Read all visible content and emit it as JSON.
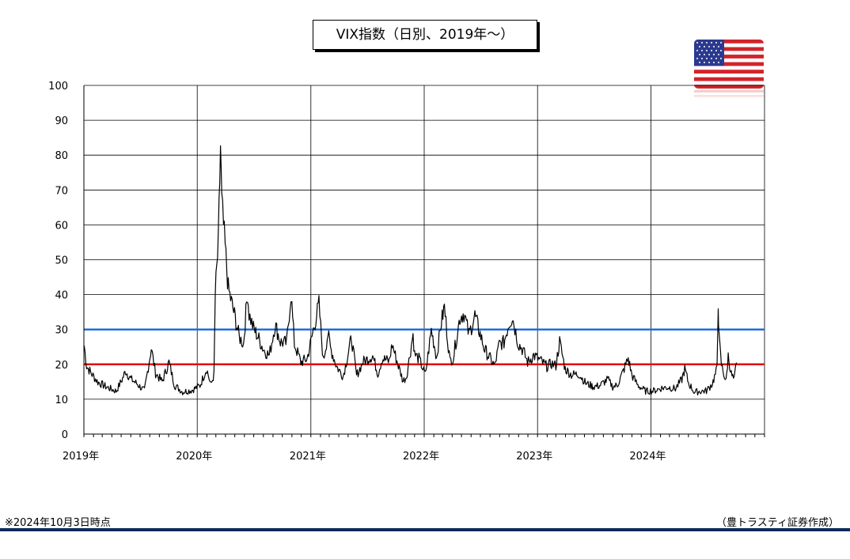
{
  "footnote": "※2024年10月3日時点",
  "credit": "（豊トラスティ証券作成）",
  "flag_icon": "us-flag-icon",
  "chart_data": {
    "type": "line",
    "title": "VIX指数（日別、2019年～）",
    "ylim": [
      0,
      100
    ],
    "yticks": [
      0,
      10,
      20,
      30,
      40,
      50,
      60,
      70,
      80,
      90,
      100
    ],
    "xlim": [
      "2019-01-01",
      "2025-01-01"
    ],
    "xticks": [
      {
        "label": "2019年",
        "date": "2019-01-01"
      },
      {
        "label": "2020年",
        "date": "2020-01-01"
      },
      {
        "label": "2021年",
        "date": "2021-01-01"
      },
      {
        "label": "2022年",
        "date": "2022-01-01"
      },
      {
        "label": "2023年",
        "date": "2023-01-01"
      },
      {
        "label": "2024年",
        "date": "2024-01-01"
      }
    ],
    "grid": true,
    "legend": "none",
    "reference_lines": [
      {
        "value": 30,
        "color": "#1f6fe0"
      },
      {
        "value": 20,
        "color": "#e01010"
      }
    ],
    "series": [
      {
        "color": "#000000",
        "x": [
          "2019-01-02",
          "2019-01-10",
          "2019-01-25",
          "2019-02-15",
          "2019-03-15",
          "2019-04-15",
          "2019-05-06",
          "2019-05-15",
          "2019-06-01",
          "2019-06-20",
          "2019-07-15",
          "2019-08-06",
          "2019-08-20",
          "2019-09-10",
          "2019-10-02",
          "2019-10-20",
          "2019-11-15",
          "2019-12-15",
          "2020-01-10",
          "2020-01-31",
          "2020-02-14",
          "2020-02-24",
          "2020-02-28",
          "2020-03-09",
          "2020-03-16",
          "2020-03-20",
          "2020-03-31",
          "2020-04-10",
          "2020-04-30",
          "2020-05-15",
          "2020-05-29",
          "2020-06-11",
          "2020-06-16",
          "2020-06-30",
          "2020-07-15",
          "2020-08-01",
          "2020-08-20",
          "2020-09-08",
          "2020-09-25",
          "2020-10-15",
          "2020-10-29",
          "2020-11-09",
          "2020-11-30",
          "2020-12-20",
          "2021-01-27",
          "2021-02-10",
          "2021-02-25",
          "2021-03-05",
          "2021-03-25",
          "2021-04-15",
          "2021-05-12",
          "2021-05-28",
          "2021-06-18",
          "2021-07-19",
          "2021-08-05",
          "2021-08-19",
          "2021-09-10",
          "2021-09-20",
          "2021-10-05",
          "2021-10-25",
          "2021-11-05",
          "2021-11-26",
          "2021-12-01",
          "2021-12-15",
          "2022-01-05",
          "2022-01-24",
          "2022-02-10",
          "2022-02-23",
          "2022-03-07",
          "2022-03-25",
          "2022-04-05",
          "2022-04-26",
          "2022-05-09",
          "2022-05-25",
          "2022-06-13",
          "2022-06-30",
          "2022-07-15",
          "2022-08-16",
          "2022-08-31",
          "2022-09-15",
          "2022-09-30",
          "2022-10-12",
          "2022-10-31",
          "2022-11-15",
          "2022-11-30",
          "2022-12-20",
          "2023-01-10",
          "2023-01-31",
          "2023-02-15",
          "2023-03-01",
          "2023-03-13",
          "2023-03-31",
          "2023-04-20",
          "2023-05-15",
          "2023-06-05",
          "2023-06-30",
          "2023-07-20",
          "2023-08-15",
          "2023-08-31",
          "2023-09-15",
          "2023-10-02",
          "2023-10-20",
          "2023-11-01",
          "2023-11-20",
          "2023-12-15",
          "2024-01-10",
          "2024-02-05",
          "2024-02-28",
          "2024-03-20",
          "2024-04-10",
          "2024-04-19",
          "2024-05-01",
          "2024-05-20",
          "2024-06-10",
          "2024-06-28",
          "2024-07-17",
          "2024-07-24",
          "2024-08-01",
          "2024-08-05",
          "2024-08-07",
          "2024-08-15",
          "2024-08-30",
          "2024-09-06",
          "2024-09-16",
          "2024-09-25",
          "2024-10-03"
        ],
        "values": [
          25.4,
          19.5,
          17.4,
          14.9,
          13.5,
          12.3,
          16.0,
          18.1,
          15.8,
          14.5,
          12.4,
          24.6,
          17.5,
          15.0,
          20.6,
          14.0,
          12.1,
          12.6,
          13.9,
          18.8,
          14.0,
          17.1,
          40.1,
          54.5,
          82.7,
          66.0,
          53.5,
          41.7,
          34.2,
          27.9,
          25.8,
          40.8,
          34.4,
          30.4,
          27.8,
          24.3,
          22.5,
          31.5,
          26.4,
          26.1,
          40.3,
          25.8,
          20.6,
          21.6,
          37.2,
          21.0,
          28.9,
          24.7,
          19.4,
          16.6,
          27.6,
          16.8,
          20.7,
          22.5,
          17.3,
          21.7,
          20.9,
          25.7,
          21.0,
          15.2,
          16.5,
          28.6,
          22.9,
          21.6,
          17.0,
          29.9,
          22.0,
          31.0,
          36.5,
          20.8,
          22.1,
          33.5,
          34.8,
          28.5,
          34.0,
          28.7,
          24.2,
          19.5,
          25.9,
          26.3,
          31.6,
          33.6,
          26.0,
          24.1,
          20.6,
          22.6,
          21.1,
          19.4,
          20.2,
          19.6,
          26.5,
          18.7,
          17.0,
          17.2,
          14.6,
          13.6,
          13.9,
          15.7,
          13.6,
          14.0,
          17.6,
          21.7,
          16.9,
          14.0,
          12.3,
          12.4,
          13.2,
          13.4,
          13.0,
          15.7,
          18.7,
          14.7,
          12.0,
          12.3,
          12.4,
          14.5,
          16.4,
          18.6,
          38.6,
          27.9,
          20.0,
          15.0,
          22.4,
          17.2,
          15.4,
          20.5
        ]
      }
    ]
  }
}
